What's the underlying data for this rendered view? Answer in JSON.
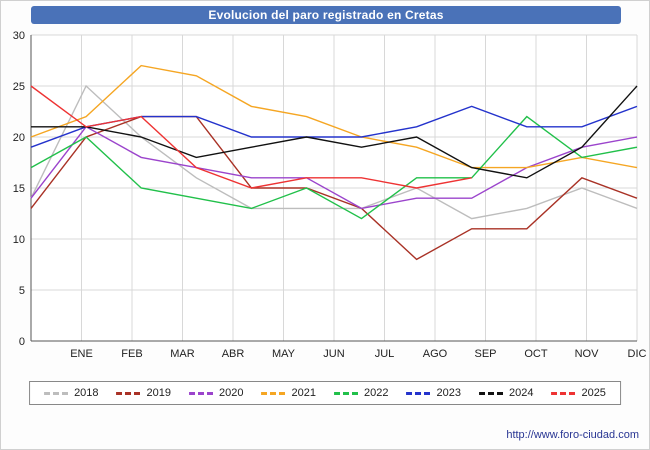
{
  "title": "Evolucion del paro registrado en Cretas",
  "watermark": "http://www.foro-ciudad.com",
  "colors": {
    "title_bg": "#4a72b8",
    "grid": "#d8d8d8",
    "axis": "#555555",
    "tick_text": "#222222"
  },
  "chart_data": {
    "type": "line",
    "title": "Evolucion del paro registrado en Cretas",
    "xlabel": "",
    "ylabel": "",
    "ylim": [
      0,
      30
    ],
    "y_tick_step": 5,
    "grid": true,
    "legend_position": "bottom",
    "x_labels": [
      "ENE",
      "FEB",
      "MAR",
      "ABR",
      "MAY",
      "JUN",
      "JUL",
      "AGO",
      "SEP",
      "OCT",
      "NOV",
      "DIC"
    ],
    "series": [
      {
        "name": "2018",
        "color": "#bdbdbd",
        "values": [
          14,
          25,
          20,
          16,
          13,
          13,
          13,
          15,
          12,
          13,
          15,
          13
        ]
      },
      {
        "name": "2019",
        "color": "#a93226",
        "values": [
          13,
          20,
          22,
          22,
          15,
          15,
          13,
          8,
          11,
          11,
          16,
          14
        ]
      },
      {
        "name": "2020",
        "color": "#9b44cc",
        "values": [
          14,
          21,
          18,
          17,
          16,
          16,
          13,
          14,
          14,
          17,
          19,
          20
        ]
      },
      {
        "name": "2021",
        "color": "#f5a623",
        "values": [
          20,
          22,
          27,
          26,
          23,
          22,
          20,
          19,
          17,
          17,
          18,
          17
        ]
      },
      {
        "name": "2022",
        "color": "#21c04a",
        "values": [
          17,
          20,
          15,
          14,
          13,
          15,
          12,
          16,
          16,
          22,
          18,
          19
        ]
      },
      {
        "name": "2023",
        "color": "#2433cc",
        "values": [
          19,
          21,
          22,
          22,
          20,
          20,
          20,
          21,
          23,
          21,
          21,
          23
        ]
      },
      {
        "name": "2024",
        "color": "#111111",
        "values": [
          21,
          21,
          20,
          18,
          19,
          20,
          19,
          20,
          17,
          16,
          19,
          25
        ]
      },
      {
        "name": "2025",
        "color": "#ee3333",
        "values": [
          25,
          21,
          22,
          17,
          15,
          16,
          16,
          15,
          16,
          null,
          null,
          null
        ]
      }
    ]
  }
}
